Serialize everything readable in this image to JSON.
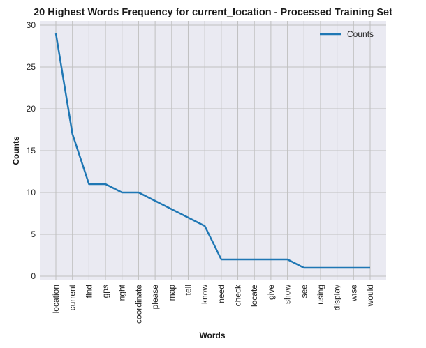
{
  "chart_data": {
    "type": "line",
    "title": "20 Highest Words Frequency for current_location - Processed Training Set",
    "xlabel": "Words",
    "ylabel": "Counts",
    "categories": [
      "location",
      "current",
      "find",
      "gps",
      "right",
      "coordinate",
      "please",
      "map",
      "tell",
      "know",
      "need",
      "check",
      "locate",
      "give",
      "show",
      "see",
      "using",
      "display",
      "wise",
      "would"
    ],
    "series": [
      {
        "name": "Counts",
        "values": [
          29,
          17,
          11,
          11,
          10,
          10,
          9,
          8,
          7,
          6,
          2,
          2,
          2,
          2,
          2,
          1,
          1,
          1,
          1,
          1
        ],
        "color": "#1f77b4"
      }
    ],
    "ylim": [
      0,
      30
    ],
    "yticks": [
      0,
      5,
      10,
      15,
      20,
      25,
      30
    ],
    "grid": true,
    "legend": "top-right",
    "background": "#eaeaf2",
    "grid_color": "#c0c0c0"
  }
}
